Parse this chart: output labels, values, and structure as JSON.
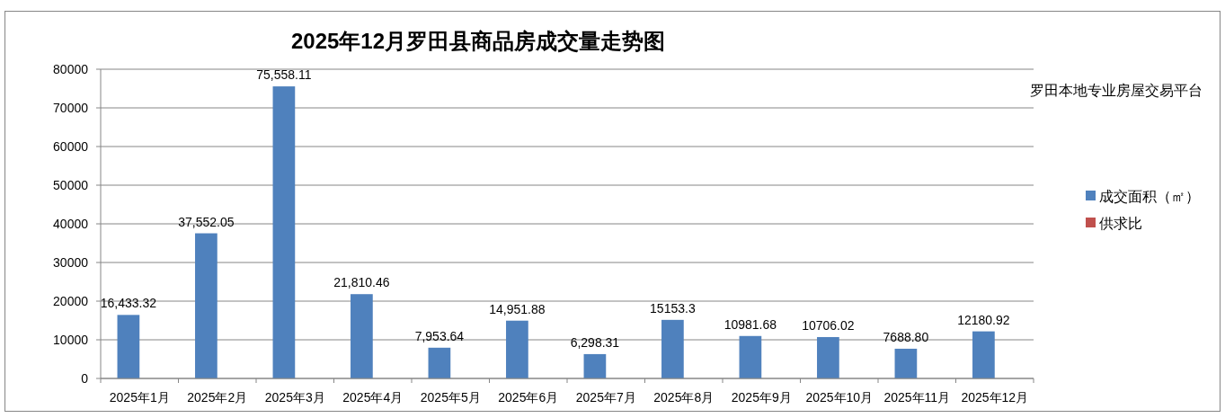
{
  "chart_data": {
    "type": "bar",
    "title": "2025年12月罗田县商品房成交量走势图",
    "categories": [
      "2025年1月",
      "2025年2月",
      "2025年3月",
      "2025年4月",
      "2025年5月",
      "2025年6月",
      "2025年7月",
      "2025年8月",
      "2025年9月",
      "2025年10月",
      "2025年11月",
      "2025年12月"
    ],
    "series": [
      {
        "name": "成交面积（㎡）",
        "color": "#4f81bd",
        "values": [
          16433.32,
          37552.05,
          75558.11,
          21810.46,
          7953.64,
          14951.88,
          6298.31,
          15153.3,
          10981.68,
          10706.02,
          7688.8,
          12180.92
        ],
        "value_labels": [
          "16,433.32",
          "37,552.05",
          "75,558.11",
          "21,810.46",
          "7,953.64",
          "14,951.88",
          "6,298.31",
          "15153.3",
          "10981.68",
          "10706.02",
          "7688.80",
          "12180.92"
        ]
      },
      {
        "name": "供求比",
        "color": "#c0504d",
        "values": [
          null,
          null,
          null,
          null,
          null,
          null,
          null,
          null,
          null,
          null,
          null,
          null
        ]
      }
    ],
    "ylim": [
      0,
      80000
    ],
    "yticks": [
      0,
      10000,
      20000,
      30000,
      40000,
      50000,
      60000,
      70000,
      80000
    ],
    "grid": "y",
    "legend": "right",
    "annotations": [
      "罗田本地专业房屋交易平台"
    ]
  }
}
